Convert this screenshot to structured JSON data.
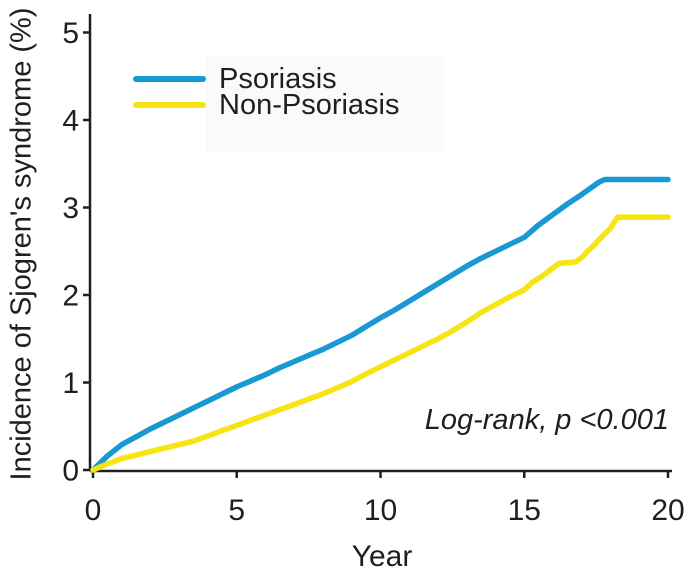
{
  "chart_data": {
    "type": "line",
    "title": "",
    "xlabel": "Year",
    "ylabel": "Incidence of Sjogren's syndrome (%)",
    "xlim": [
      0,
      20
    ],
    "ylim": [
      0,
      5
    ],
    "x_ticks": [
      "0",
      "5",
      "10",
      "15",
      "20"
    ],
    "x_tick_values": [
      0,
      5,
      10,
      15,
      20
    ],
    "y_ticks": [
      "0",
      "1",
      "2",
      "3",
      "4",
      "5"
    ],
    "y_tick_values": [
      0,
      1,
      2,
      3,
      4,
      5
    ],
    "grid": false,
    "legend_position": "upper-left-inside",
    "annotation": {
      "text": "Log-rank, p <0.001",
      "style": "italic",
      "position": "lower-right"
    },
    "axis_color": "#1f1f1f",
    "series": [
      {
        "name": "Psoriasis",
        "color": "#1899d4",
        "points": [
          [
            0,
            0
          ],
          [
            0.5,
            0.16
          ],
          [
            1,
            0.29
          ],
          [
            1.5,
            0.38
          ],
          [
            2,
            0.47
          ],
          [
            2.5,
            0.55
          ],
          [
            3,
            0.63
          ],
          [
            3.5,
            0.71
          ],
          [
            4,
            0.79
          ],
          [
            4.5,
            0.87
          ],
          [
            5,
            0.95
          ],
          [
            5.5,
            1.02
          ],
          [
            6,
            1.09
          ],
          [
            6.5,
            1.17
          ],
          [
            7,
            1.24
          ],
          [
            7.5,
            1.31
          ],
          [
            8,
            1.38
          ],
          [
            8.5,
            1.46
          ],
          [
            9,
            1.54
          ],
          [
            9.5,
            1.64
          ],
          [
            10,
            1.74
          ],
          [
            10.5,
            1.83
          ],
          [
            11,
            1.93
          ],
          [
            11.5,
            2.03
          ],
          [
            12,
            2.13
          ],
          [
            12.5,
            2.23
          ],
          [
            13,
            2.33
          ],
          [
            13.5,
            2.42
          ],
          [
            14,
            2.5
          ],
          [
            14.5,
            2.58
          ],
          [
            15,
            2.66
          ],
          [
            15.5,
            2.8
          ],
          [
            16,
            2.92
          ],
          [
            16.5,
            3.04
          ],
          [
            17,
            3.15
          ],
          [
            17.3,
            3.22
          ],
          [
            17.6,
            3.29
          ],
          [
            17.8,
            3.32
          ],
          [
            20,
            3.32
          ]
        ]
      },
      {
        "name": "Non-Psoriasis",
        "color": "#f6e513",
        "points": [
          [
            0,
            0
          ],
          [
            0.5,
            0.07
          ],
          [
            1,
            0.13
          ],
          [
            1.5,
            0.17
          ],
          [
            2,
            0.21
          ],
          [
            2.5,
            0.25
          ],
          [
            3,
            0.29
          ],
          [
            3.5,
            0.33
          ],
          [
            4,
            0.39
          ],
          [
            4.5,
            0.45
          ],
          [
            5,
            0.51
          ],
          [
            5.5,
            0.57
          ],
          [
            6,
            0.63
          ],
          [
            6.5,
            0.69
          ],
          [
            7,
            0.75
          ],
          [
            7.5,
            0.81
          ],
          [
            8,
            0.87
          ],
          [
            8.5,
            0.94
          ],
          [
            9,
            1.01
          ],
          [
            9.5,
            1.1
          ],
          [
            10,
            1.18
          ],
          [
            10.5,
            1.26
          ],
          [
            11,
            1.34
          ],
          [
            11.5,
            1.42
          ],
          [
            12,
            1.5
          ],
          [
            12.5,
            1.59
          ],
          [
            13,
            1.69
          ],
          [
            13.5,
            1.8
          ],
          [
            14,
            1.89
          ],
          [
            14.5,
            1.98
          ],
          [
            15,
            2.06
          ],
          [
            15.3,
            2.15
          ],
          [
            15.6,
            2.21
          ],
          [
            16,
            2.31
          ],
          [
            16.2,
            2.36
          ],
          [
            16.8,
            2.38
          ],
          [
            17,
            2.43
          ],
          [
            17.2,
            2.5
          ],
          [
            17.4,
            2.56
          ],
          [
            17.6,
            2.63
          ],
          [
            17.8,
            2.7
          ],
          [
            18,
            2.76
          ],
          [
            18.1,
            2.82
          ],
          [
            18.25,
            2.89
          ],
          [
            20,
            2.89
          ]
        ]
      }
    ]
  },
  "legend": {
    "items": [
      {
        "label": "Psoriasis",
        "color": "#1899d4"
      },
      {
        "label": "Non-Psoriasis",
        "color": "#f6e513"
      }
    ]
  },
  "labels": {
    "y_axis": "Incidence of Sjogren's syndrome (%)",
    "x_axis": "Year",
    "annotation": "Log-rank, p <0.001"
  }
}
